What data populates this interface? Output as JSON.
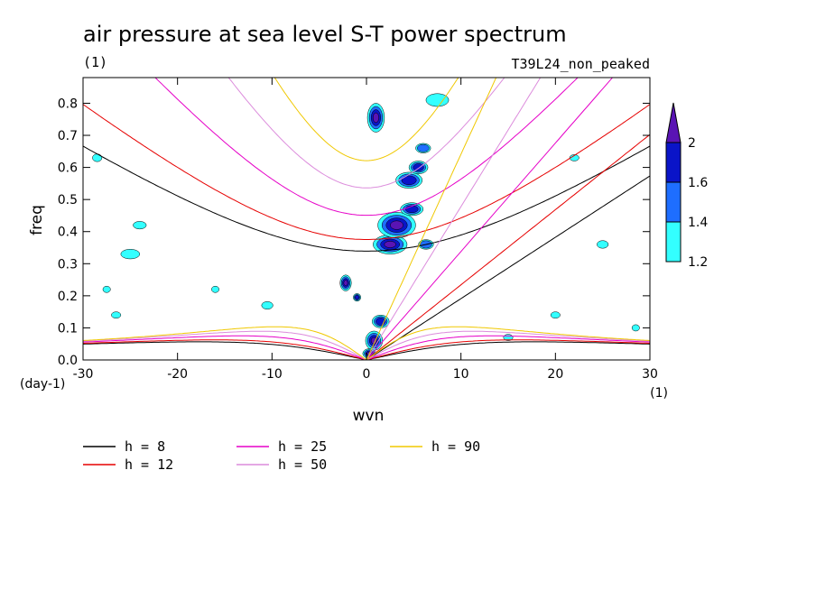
{
  "chart_data": {
    "type": "contour",
    "title": "air pressure at sea level S-T power spectrum",
    "units_left": "(1)",
    "experiment": "T39L24_non_peaked",
    "xlabel": "wvn",
    "ylabel": "freq",
    "x_unit": "(1)",
    "y_unit": "(day-1)",
    "xlim": [
      -30,
      30
    ],
    "ylim": [
      0.0,
      0.88
    ],
    "xticks": [
      {
        "v": -30,
        "label": "-30"
      },
      {
        "v": -20,
        "label": "-20"
      },
      {
        "v": -10,
        "label": "-10"
      },
      {
        "v": 0,
        "label": "0"
      },
      {
        "v": 10,
        "label": "10"
      },
      {
        "v": 20,
        "label": "20"
      },
      {
        "v": 30,
        "label": "30"
      }
    ],
    "yticks": [
      {
        "v": 0.0,
        "label": "0.0"
      },
      {
        "v": 0.1,
        "label": "0.1"
      },
      {
        "v": 0.2,
        "label": "0.2"
      },
      {
        "v": 0.3,
        "label": "0.3"
      },
      {
        "v": 0.4,
        "label": "0.4"
      },
      {
        "v": 0.5,
        "label": "0.5"
      },
      {
        "v": 0.6,
        "label": "0.6"
      },
      {
        "v": 0.7,
        "label": "0.7"
      },
      {
        "v": 0.8,
        "label": "0.8"
      }
    ],
    "colorbar": {
      "levels": [
        {
          "value": "1.2",
          "color": "#33ffff"
        },
        {
          "value": "1.4",
          "color": "#1e6eff"
        },
        {
          "value": "1.6",
          "color": "#0a14c8"
        },
        {
          "value": "2",
          "color": "#5a14b4"
        }
      ]
    },
    "legend": [
      {
        "label": "h =  8",
        "color": "#000000",
        "depth": 8
      },
      {
        "label": "h = 12",
        "color": "#e60000",
        "depth": 12
      },
      {
        "label": "h = 25",
        "color": "#e600c8",
        "depth": 25
      },
      {
        "label": "h = 50",
        "color": "#dc8cdc",
        "depth": 50
      },
      {
        "label": "h = 90",
        "color": "#f0c800",
        "depth": 90
      }
    ],
    "power_blobs": [
      {
        "x": 1.0,
        "y": 0.755,
        "rx": 0.9,
        "ry": 0.045,
        "level": 3
      },
      {
        "x": 2.5,
        "y": 0.36,
        "rx": 1.8,
        "ry": 0.03,
        "level": 3
      },
      {
        "x": 3.2,
        "y": 0.42,
        "rx": 2.0,
        "ry": 0.04,
        "level": 3
      },
      {
        "x": 4.8,
        "y": 0.47,
        "rx": 1.2,
        "ry": 0.02,
        "level": 2
      },
      {
        "x": 4.5,
        "y": 0.56,
        "rx": 1.4,
        "ry": 0.025,
        "level": 2
      },
      {
        "x": 5.5,
        "y": 0.6,
        "rx": 1.0,
        "ry": 0.02,
        "level": 2
      },
      {
        "x": 6.0,
        "y": 0.66,
        "rx": 0.8,
        "ry": 0.015,
        "level": 1
      },
      {
        "x": 1.5,
        "y": 0.12,
        "rx": 0.9,
        "ry": 0.02,
        "level": 2
      },
      {
        "x": 0.8,
        "y": 0.06,
        "rx": 0.9,
        "ry": 0.03,
        "level": 3
      },
      {
        "x": 0.3,
        "y": 0.02,
        "rx": 0.7,
        "ry": 0.015,
        "level": 3
      },
      {
        "x": -2.2,
        "y": 0.24,
        "rx": 0.6,
        "ry": 0.025,
        "level": 3
      },
      {
        "x": -1.0,
        "y": 0.195,
        "rx": 0.4,
        "ry": 0.012,
        "level": 2
      },
      {
        "x": 6.3,
        "y": 0.36,
        "rx": 0.8,
        "ry": 0.015,
        "level": 1
      },
      {
        "x": 7.5,
        "y": 0.81,
        "rx": 1.2,
        "ry": 0.02,
        "level": 0
      },
      {
        "x": -25.0,
        "y": 0.33,
        "rx": 1.0,
        "ry": 0.015,
        "level": 0
      },
      {
        "x": -24.0,
        "y": 0.42,
        "rx": 0.7,
        "ry": 0.012,
        "level": 0
      },
      {
        "x": -28.5,
        "y": 0.63,
        "rx": 0.5,
        "ry": 0.012,
        "level": 0
      },
      {
        "x": -26.5,
        "y": 0.14,
        "rx": 0.5,
        "ry": 0.01,
        "level": 0
      },
      {
        "x": -16.0,
        "y": 0.22,
        "rx": 0.4,
        "ry": 0.01,
        "level": 0
      },
      {
        "x": 22.0,
        "y": 0.63,
        "rx": 0.5,
        "ry": 0.01,
        "level": 0
      },
      {
        "x": 25.0,
        "y": 0.36,
        "rx": 0.6,
        "ry": 0.012,
        "level": 0
      },
      {
        "x": 20.0,
        "y": 0.14,
        "rx": 0.5,
        "ry": 0.01,
        "level": 0
      },
      {
        "x": 28.5,
        "y": 0.1,
        "rx": 0.4,
        "ry": 0.01,
        "level": 0
      },
      {
        "x": -27.5,
        "y": 0.22,
        "rx": 0.4,
        "ry": 0.01,
        "level": 0
      },
      {
        "x": -10.5,
        "y": 0.17,
        "rx": 0.6,
        "ry": 0.012,
        "level": 0
      },
      {
        "x": 15.0,
        "y": 0.07,
        "rx": 0.5,
        "ry": 0.01,
        "level": 0
      }
    ]
  }
}
